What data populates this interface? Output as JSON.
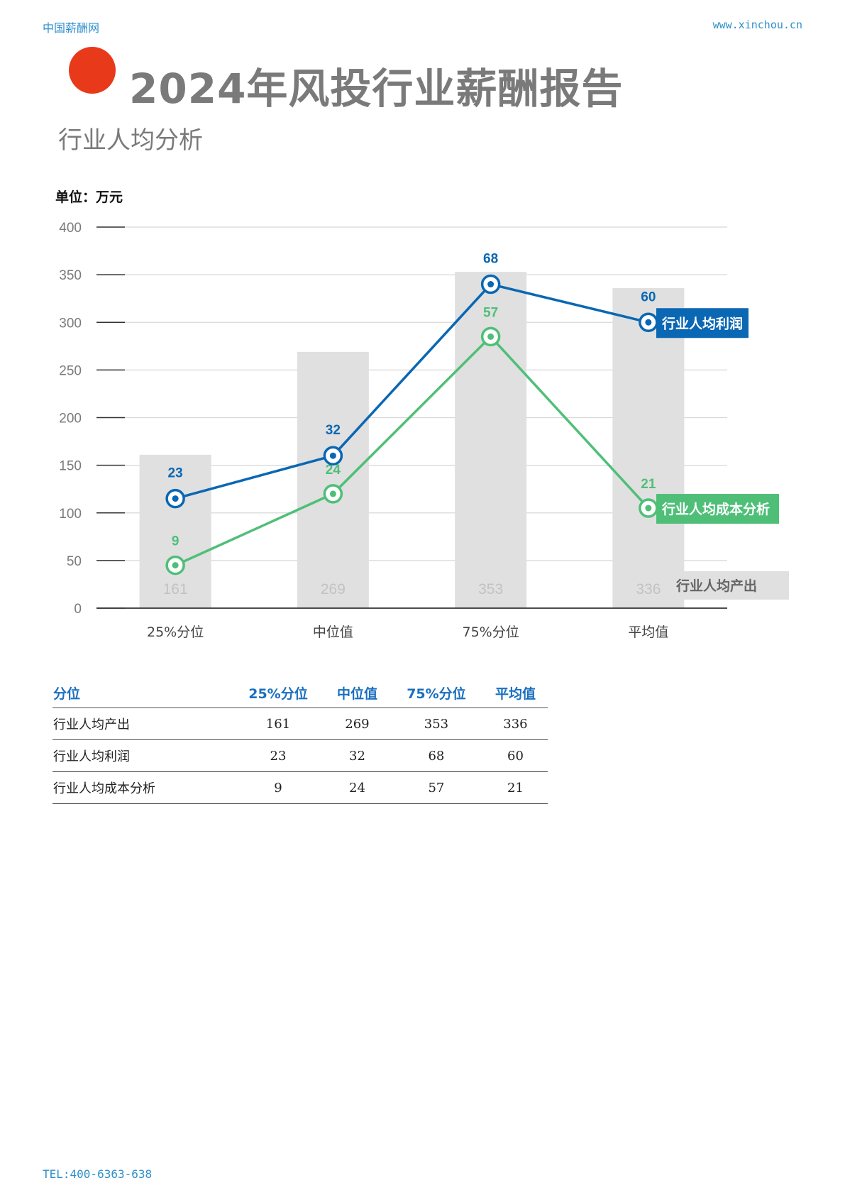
{
  "header": {
    "site": "中国薪酬网",
    "url": "www.xinchou.cn"
  },
  "title": "2024年风投行业薪酬报告",
  "subtitle": "行业人均分析",
  "unit": "单位：万元",
  "colors": {
    "accent_dot": "#e8391b",
    "blue": "#0a67b3",
    "green": "#4fbf78",
    "bar": "#e0e0e0"
  },
  "chart_data": {
    "type": "bar",
    "categories": [
      "25%分位",
      "中位值",
      "75%分位",
      "平均值"
    ],
    "ylim": [
      0,
      400
    ],
    "yticks": [
      0,
      50,
      100,
      150,
      200,
      250,
      300,
      350,
      400
    ],
    "grid": true,
    "series": [
      {
        "name": "行业人均产出",
        "type": "bar",
        "values": [
          161,
          269,
          353,
          336
        ]
      },
      {
        "name": "行业人均利润",
        "type": "line",
        "labels": [
          23,
          32,
          68,
          60
        ],
        "plotted": [
          115,
          160,
          340,
          300
        ]
      },
      {
        "name": "行业人均成本分析",
        "type": "line",
        "labels": [
          9,
          24,
          57,
          21
        ],
        "plotted": [
          45,
          120,
          285,
          105
        ]
      }
    ]
  },
  "table": {
    "headers": [
      "分位",
      "25%分位",
      "中位值",
      "75%分位",
      "平均值"
    ],
    "rows": [
      [
        "行业人均产出",
        "161",
        "269",
        "353",
        "336"
      ],
      [
        "行业人均利润",
        "23",
        "32",
        "68",
        "60"
      ],
      [
        "行业人均成本分析",
        "9",
        "24",
        "57",
        "21"
      ]
    ]
  },
  "footer": "TEL:400-6363-638"
}
